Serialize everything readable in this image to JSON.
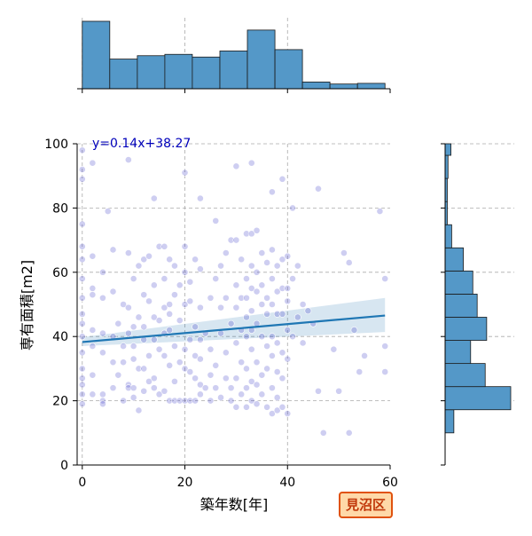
{
  "chart_data": {
    "type": "scatter",
    "title": "",
    "xlabel": "築年数[年]",
    "ylabel": "専有面積[m2]",
    "xlim": [
      -1,
      60
    ],
    "ylim": [
      0,
      100
    ],
    "x_ticks": [
      0,
      20,
      40,
      60
    ],
    "y_ticks": [
      0,
      20,
      40,
      60,
      80,
      100
    ],
    "grid": true,
    "regression": {
      "label": "y=0.14x+38.27",
      "slope": 0.14,
      "intercept": 38.27,
      "x_range": [
        0,
        59
      ],
      "ci_lower": [
        37.0,
        41.4
      ],
      "ci_upper": [
        39.8,
        52.0
      ]
    },
    "top_histogram": {
      "bin_edges": [
        0,
        5.36,
        10.73,
        16.09,
        21.45,
        26.82,
        32.18,
        37.55,
        42.91,
        48.27,
        53.64,
        59
      ],
      "counts": [
        100,
        44,
        49,
        51,
        47,
        56,
        87,
        58,
        10,
        7,
        8
      ]
    },
    "right_histogram": {
      "bin_edges": [
        10,
        17.2,
        24.4,
        31.6,
        38.8,
        46,
        53.2,
        60.4,
        67.6,
        74.8,
        82,
        89.2,
        96.4,
        100
      ],
      "counts": [
        12,
        90,
        55,
        35,
        57,
        44,
        38,
        25,
        9,
        3,
        3,
        4,
        8
      ]
    },
    "points": [
      [
        0,
        98
      ],
      [
        0,
        92
      ],
      [
        0,
        89
      ],
      [
        0,
        75
      ],
      [
        0,
        68
      ],
      [
        0,
        64
      ],
      [
        0,
        58
      ],
      [
        0,
        52
      ],
      [
        0,
        47
      ],
      [
        0,
        44
      ],
      [
        0,
        40
      ],
      [
        0,
        35
      ],
      [
        0,
        30
      ],
      [
        0,
        27
      ],
      [
        0,
        25
      ],
      [
        0,
        22
      ],
      [
        0,
        19
      ],
      [
        2,
        94
      ],
      [
        2,
        65
      ],
      [
        2,
        55
      ],
      [
        2,
        53
      ],
      [
        2,
        42
      ],
      [
        2,
        37
      ],
      [
        2,
        28
      ],
      [
        2,
        22
      ],
      [
        4,
        60
      ],
      [
        4,
        52
      ],
      [
        4,
        41
      ],
      [
        4,
        35
      ],
      [
        4,
        22
      ],
      [
        4,
        20
      ],
      [
        4,
        19
      ],
      [
        5,
        79
      ],
      [
        6,
        67
      ],
      [
        6,
        54
      ],
      [
        6,
        40
      ],
      [
        6,
        32
      ],
      [
        6,
        24
      ],
      [
        7,
        44
      ],
      [
        7,
        28
      ],
      [
        8,
        50
      ],
      [
        8,
        37
      ],
      [
        8,
        32
      ],
      [
        8,
        20
      ],
      [
        9,
        95
      ],
      [
        9,
        66
      ],
      [
        9,
        49
      ],
      [
        9,
        41
      ],
      [
        9,
        25
      ],
      [
        9,
        24
      ],
      [
        10,
        58
      ],
      [
        10,
        43
      ],
      [
        10,
        37
      ],
      [
        10,
        33
      ],
      [
        10,
        24
      ],
      [
        10,
        21
      ],
      [
        11,
        62
      ],
      [
        11,
        46
      ],
      [
        11,
        30
      ],
      [
        11,
        17
      ],
      [
        12,
        64
      ],
      [
        12,
        53
      ],
      [
        12,
        43
      ],
      [
        12,
        39
      ],
      [
        12,
        30
      ],
      [
        12,
        23
      ],
      [
        13,
        65
      ],
      [
        13,
        51
      ],
      [
        13,
        34
      ],
      [
        13,
        26
      ],
      [
        14,
        83
      ],
      [
        14,
        56
      ],
      [
        14,
        46
      ],
      [
        14,
        39
      ],
      [
        14,
        27
      ],
      [
        14,
        24
      ],
      [
        15,
        68
      ],
      [
        15,
        45
      ],
      [
        15,
        36
      ],
      [
        15,
        22
      ],
      [
        16,
        68
      ],
      [
        16,
        58
      ],
      [
        16,
        49
      ],
      [
        16,
        41
      ],
      [
        16,
        34
      ],
      [
        16,
        23
      ],
      [
        17,
        64
      ],
      [
        17,
        50
      ],
      [
        17,
        47
      ],
      [
        17,
        42
      ],
      [
        17,
        31
      ],
      [
        17,
        20
      ],
      [
        18,
        62
      ],
      [
        18,
        53
      ],
      [
        18,
        37
      ],
      [
        18,
        26
      ],
      [
        18,
        20
      ],
      [
        19,
        56
      ],
      [
        19,
        45
      ],
      [
        19,
        32
      ],
      [
        19,
        20
      ],
      [
        20,
        91
      ],
      [
        20,
        68
      ],
      [
        20,
        60
      ],
      [
        20,
        50
      ],
      [
        20,
        36
      ],
      [
        20,
        30
      ],
      [
        20,
        20
      ],
      [
        21,
        57
      ],
      [
        21,
        51
      ],
      [
        21,
        39
      ],
      [
        21,
        29
      ],
      [
        21,
        20
      ],
      [
        22,
        64
      ],
      [
        22,
        43
      ],
      [
        22,
        34
      ],
      [
        22,
        27
      ],
      [
        22,
        20
      ],
      [
        23,
        83
      ],
      [
        23,
        61
      ],
      [
        23,
        49
      ],
      [
        23,
        39
      ],
      [
        23,
        33
      ],
      [
        23,
        25
      ],
      [
        23,
        22
      ],
      [
        24,
        41
      ],
      [
        24,
        24
      ],
      [
        25,
        52
      ],
      [
        25,
        36
      ],
      [
        25,
        28
      ],
      [
        25,
        20
      ],
      [
        26,
        76
      ],
      [
        26,
        58
      ],
      [
        26,
        31
      ],
      [
        26,
        24
      ],
      [
        27,
        62
      ],
      [
        27,
        49
      ],
      [
        27,
        41
      ],
      [
        27,
        21
      ],
      [
        28,
        66
      ],
      [
        28,
        52
      ],
      [
        28,
        35
      ],
      [
        28,
        27
      ],
      [
        29,
        70
      ],
      [
        29,
        44
      ],
      [
        29,
        24
      ],
      [
        29,
        20
      ],
      [
        30,
        93
      ],
      [
        30,
        70
      ],
      [
        30,
        56
      ],
      [
        30,
        49
      ],
      [
        30,
        38
      ],
      [
        30,
        27
      ],
      [
        30,
        18
      ],
      [
        31,
        64
      ],
      [
        31,
        52
      ],
      [
        31,
        42
      ],
      [
        31,
        32
      ],
      [
        31,
        22
      ],
      [
        32,
        72
      ],
      [
        32,
        58
      ],
      [
        32,
        52
      ],
      [
        32,
        46
      ],
      [
        32,
        40
      ],
      [
        32,
        30
      ],
      [
        32,
        24
      ],
      [
        32,
        18
      ],
      [
        33,
        94
      ],
      [
        33,
        72
      ],
      [
        33,
        62
      ],
      [
        33,
        55
      ],
      [
        33,
        48
      ],
      [
        33,
        42
      ],
      [
        33,
        36
      ],
      [
        33,
        26
      ],
      [
        33,
        20
      ],
      [
        34,
        73
      ],
      [
        34,
        60
      ],
      [
        34,
        54
      ],
      [
        34,
        44
      ],
      [
        34,
        32
      ],
      [
        34,
        25
      ],
      [
        34,
        19
      ],
      [
        35,
        66
      ],
      [
        35,
        56
      ],
      [
        35,
        50
      ],
      [
        35,
        40
      ],
      [
        35,
        28
      ],
      [
        35,
        22
      ],
      [
        36,
        63
      ],
      [
        36,
        52
      ],
      [
        36,
        47
      ],
      [
        36,
        37
      ],
      [
        36,
        30
      ],
      [
        36,
        18
      ],
      [
        37,
        85
      ],
      [
        37,
        67
      ],
      [
        37,
        58
      ],
      [
        37,
        50
      ],
      [
        37,
        40
      ],
      [
        37,
        34
      ],
      [
        37,
        24
      ],
      [
        37,
        16
      ],
      [
        38,
        62
      ],
      [
        38,
        54
      ],
      [
        38,
        47
      ],
      [
        38,
        38
      ],
      [
        38,
        29
      ],
      [
        38,
        21
      ],
      [
        38,
        17
      ],
      [
        39,
        89
      ],
      [
        39,
        64
      ],
      [
        39,
        55
      ],
      [
        39,
        47
      ],
      [
        39,
        35
      ],
      [
        39,
        27
      ],
      [
        39,
        18
      ],
      [
        40,
        65
      ],
      [
        40,
        55
      ],
      [
        40,
        51
      ],
      [
        40,
        42
      ],
      [
        40,
        33
      ],
      [
        40,
        16
      ],
      [
        41,
        80
      ],
      [
        41,
        58
      ],
      [
        41,
        40
      ],
      [
        42,
        62
      ],
      [
        42,
        46
      ],
      [
        43,
        50
      ],
      [
        43,
        38
      ],
      [
        44,
        48
      ],
      [
        45,
        44
      ],
      [
        46,
        86
      ],
      [
        46,
        23
      ],
      [
        47,
        10
      ],
      [
        49,
        36
      ],
      [
        50,
        23
      ],
      [
        51,
        66
      ],
      [
        52,
        63
      ],
      [
        52,
        10
      ],
      [
        53,
        42
      ],
      [
        54,
        29
      ],
      [
        55,
        34
      ],
      [
        58,
        79
      ],
      [
        59,
        58
      ],
      [
        59,
        37
      ],
      [
        59,
        29
      ]
    ]
  },
  "badge": {
    "label": "見沼区"
  }
}
